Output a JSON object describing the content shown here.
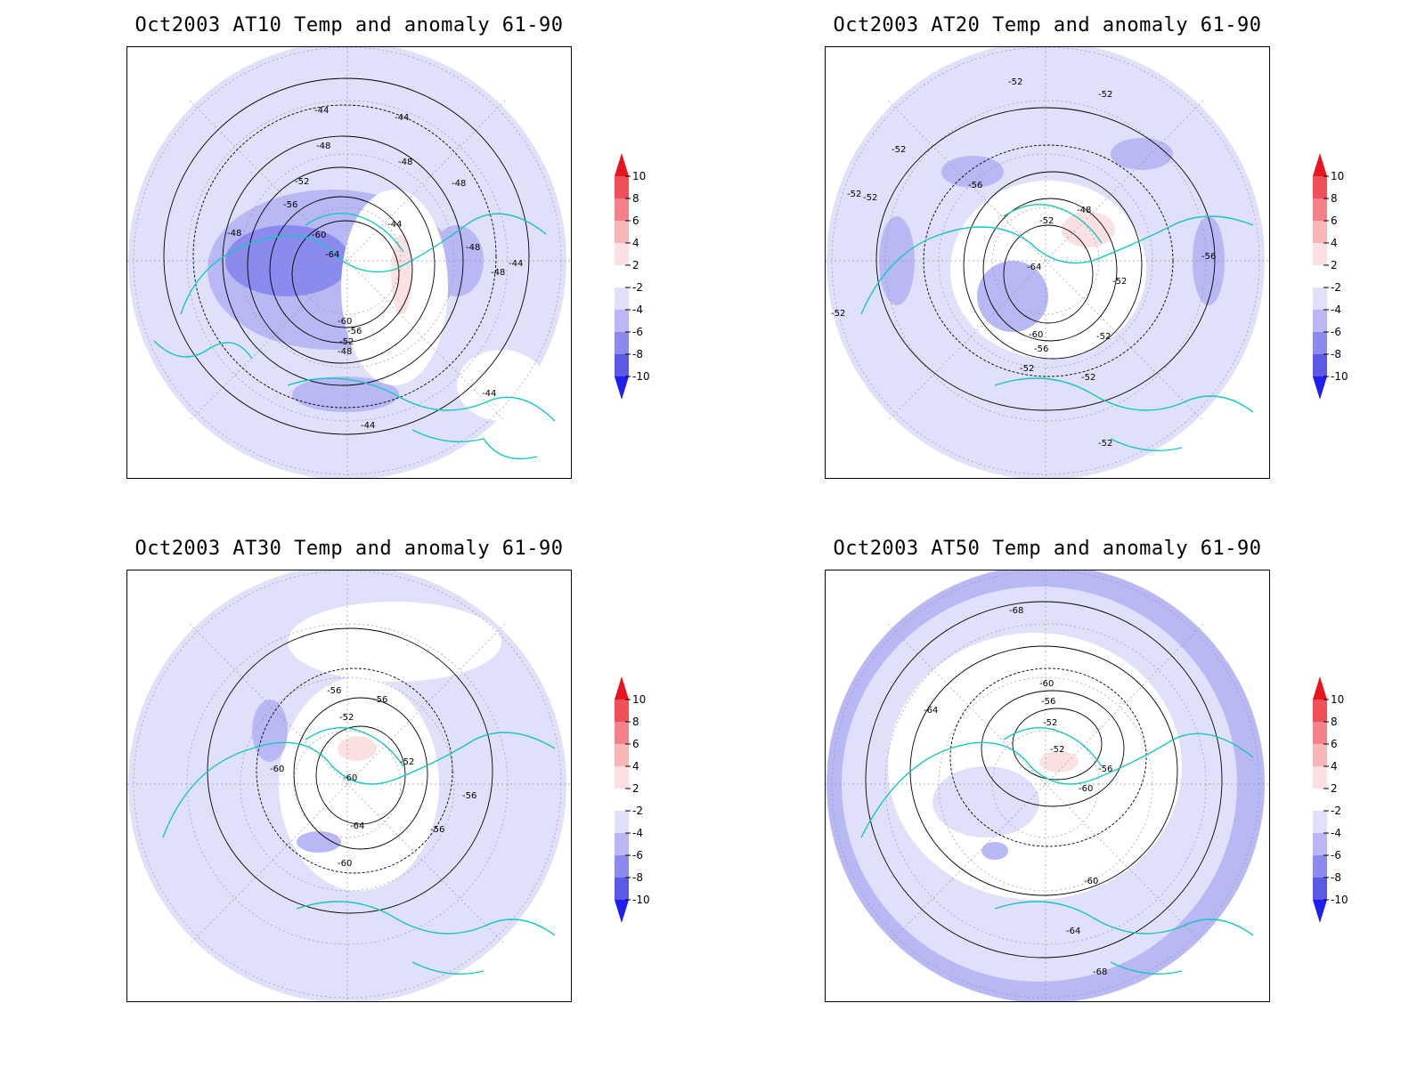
{
  "panels": [
    {
      "title": "Oct2003 AT10 Temp and anomaly 61-90",
      "contour_labels": [
        "-44",
        "-44",
        "-48",
        "-48",
        "-52",
        "-56",
        "-60",
        "-64",
        "-60",
        "-56",
        "-52",
        "-48",
        "-48",
        "-48",
        "-44",
        "-48",
        "-44",
        "-44",
        "-44",
        "-48"
      ]
    },
    {
      "title": "Oct2003 AT20 Temp and anomaly 61-90",
      "contour_labels": [
        "-52",
        "-52",
        "-52",
        "-52",
        "-56",
        "-52",
        "-48",
        "-64",
        "-60",
        "-56",
        "-52",
        "-52",
        "-52",
        "-52",
        "-56",
        "-52",
        "-52",
        "-52"
      ]
    },
    {
      "title": "Oct2003 AT30 Temp and anomaly 61-90",
      "contour_labels": [
        "-56",
        "-56",
        "-52",
        "-52",
        "-60",
        "-60",
        "-64",
        "-60",
        "-56",
        "-56"
      ]
    },
    {
      "title": "Oct2003 AT50 Temp and anomaly 61-90",
      "contour_labels": [
        "-68",
        "-64",
        "-60",
        "-56",
        "-52",
        "-52",
        "-56",
        "-60",
        "-60",
        "-64",
        "-68"
      ]
    }
  ],
  "colorbar": {
    "ticks": [
      "10",
      "8",
      "6",
      "4",
      "2",
      "-2",
      "-4",
      "-6",
      "-8",
      "-10"
    ],
    "colors": [
      "#e8141e",
      "#f0505a",
      "#f58288",
      "#f9b7b9",
      "#fbe1e1",
      "#ffffff",
      "#e0e0fa",
      "#b8b8f5",
      "#8a8aef",
      "#5a5ae6",
      "#1e1ef0"
    ]
  },
  "colors": {
    "coast": "#14c8c0",
    "contour": "#000000",
    "neg_light": "#e0e0fa",
    "neg_mid": "#b8b8f5",
    "neg_dark": "#8a8aef",
    "pos_light": "#fbe1e1"
  }
}
